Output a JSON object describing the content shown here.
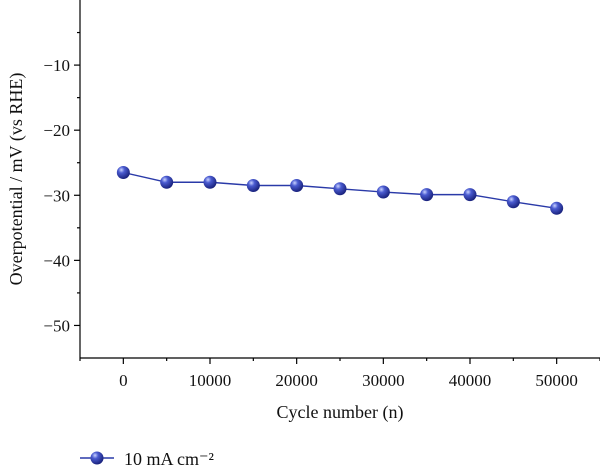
{
  "chart_data": {
    "type": "line",
    "xlabel": "Cycle number (n)",
    "ylabel": "Overpotential / mV (vs RHE)",
    "xlim": [
      -5000,
      55000
    ],
    "ylim": [
      -55,
      0
    ],
    "x_ticks": [
      0,
      10000,
      20000,
      30000,
      40000,
      50000
    ],
    "y_ticks": [
      -10,
      -20,
      -30,
      -40,
      -50
    ],
    "y_tick_labels": [
      "−10",
      "−20",
      "−30",
      "−40",
      "−50"
    ],
    "grid": false,
    "legend_position": "bottom-left",
    "series": [
      {
        "name": "10 mA cm⁻²",
        "color": "#2a3aa8",
        "marker": "sphere",
        "x": [
          0,
          5000,
          10000,
          15000,
          20000,
          25000,
          30000,
          35000,
          40000,
          45000,
          50000
        ],
        "y": [
          -26.5,
          -28.0,
          -28.0,
          -28.5,
          -28.5,
          -29.0,
          -29.5,
          -29.9,
          -29.9,
          -31.0,
          -32.0
        ]
      }
    ]
  }
}
